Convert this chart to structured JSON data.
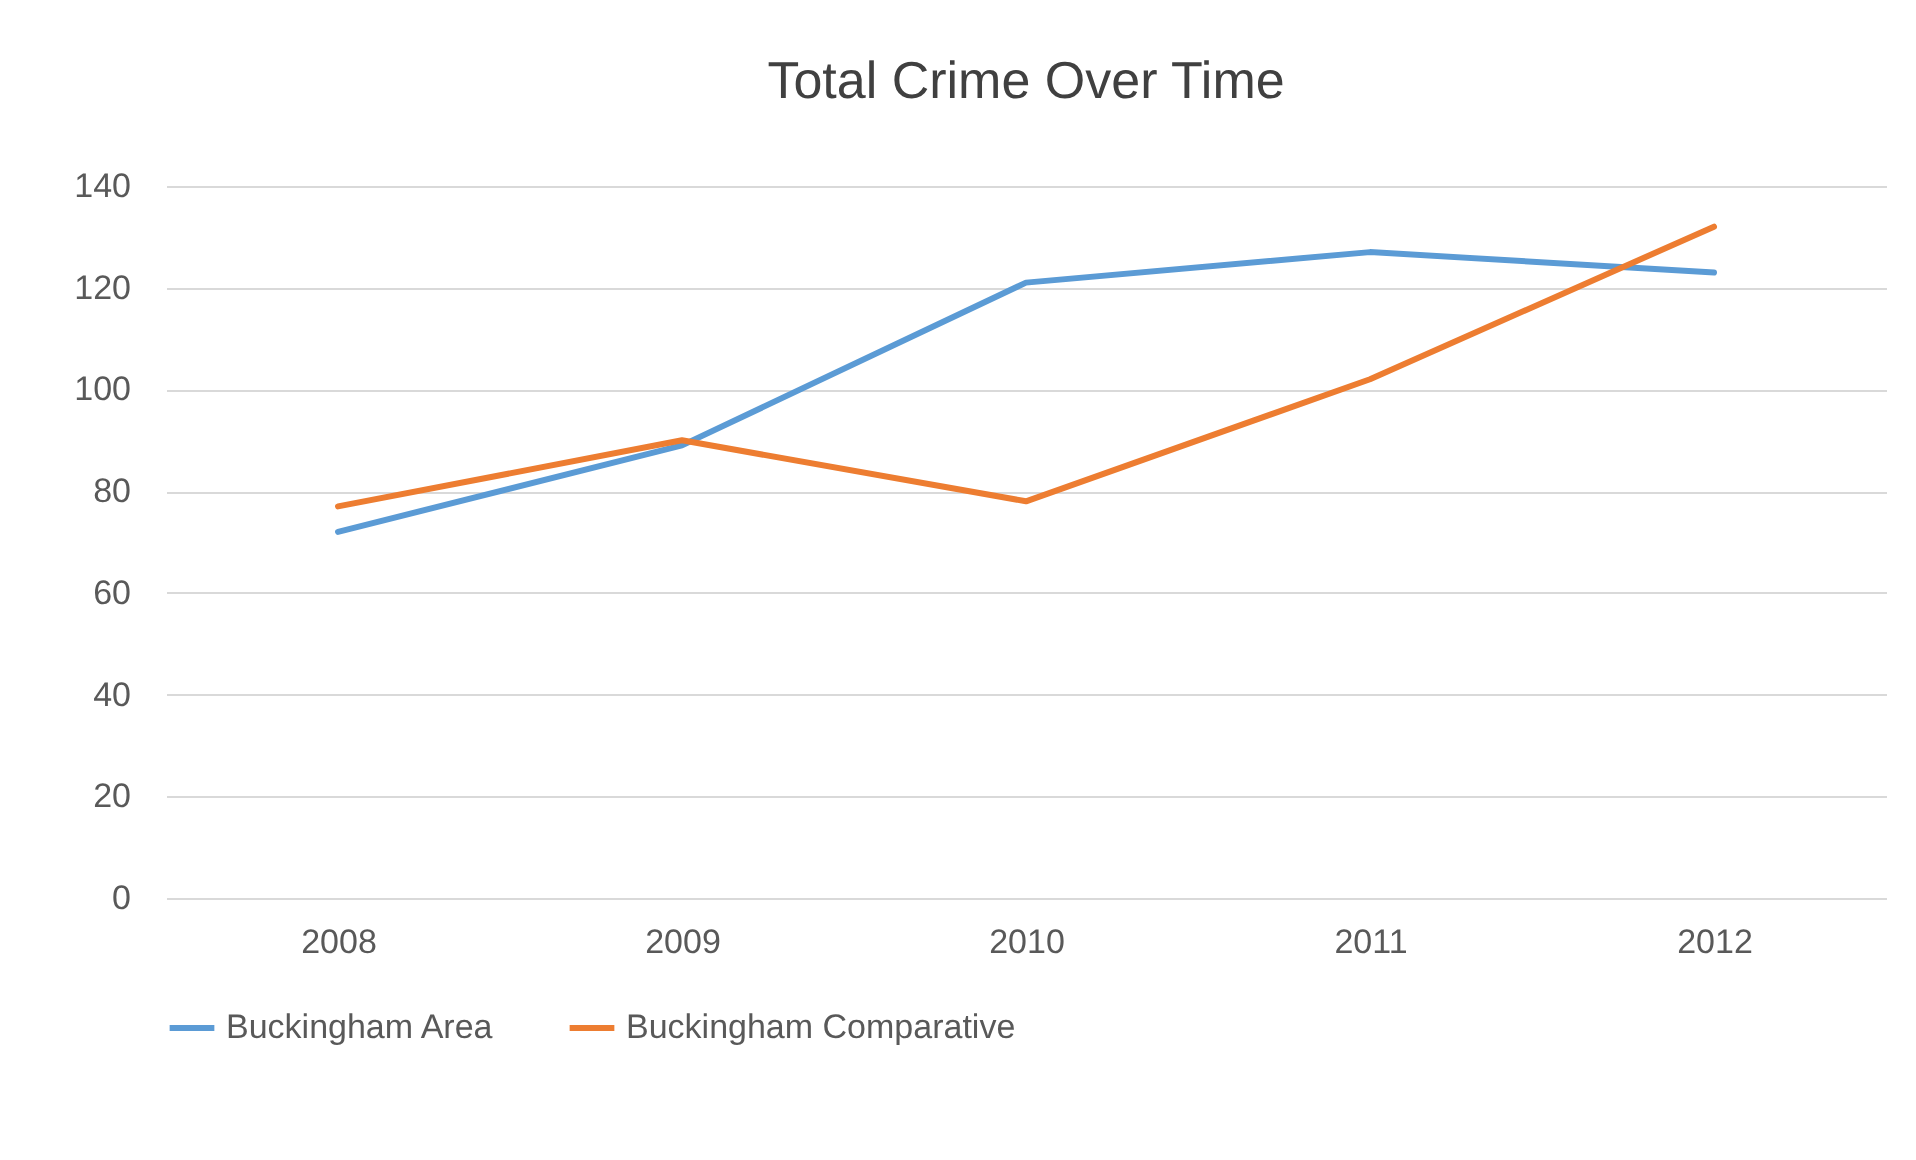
{
  "chart_data": {
    "type": "line",
    "title": "Total Crime Over Time",
    "categories": [
      "2008",
      "2009",
      "2010",
      "2011",
      "2012"
    ],
    "series": [
      {
        "name": "Buckingham Area",
        "color": "#5b9bd5",
        "values": [
          72,
          89,
          121,
          127,
          123
        ]
      },
      {
        "name": "Buckingham Comparative",
        "color": "#ed7d31",
        "values": [
          77,
          90,
          78,
          102,
          132
        ]
      }
    ],
    "ylim": [
      0,
      140
    ],
    "yticks": [
      0,
      20,
      40,
      60,
      80,
      100,
      120,
      140
    ],
    "grid": "y",
    "legend": "bottom",
    "marker": "none",
    "line_style": "solid"
  }
}
